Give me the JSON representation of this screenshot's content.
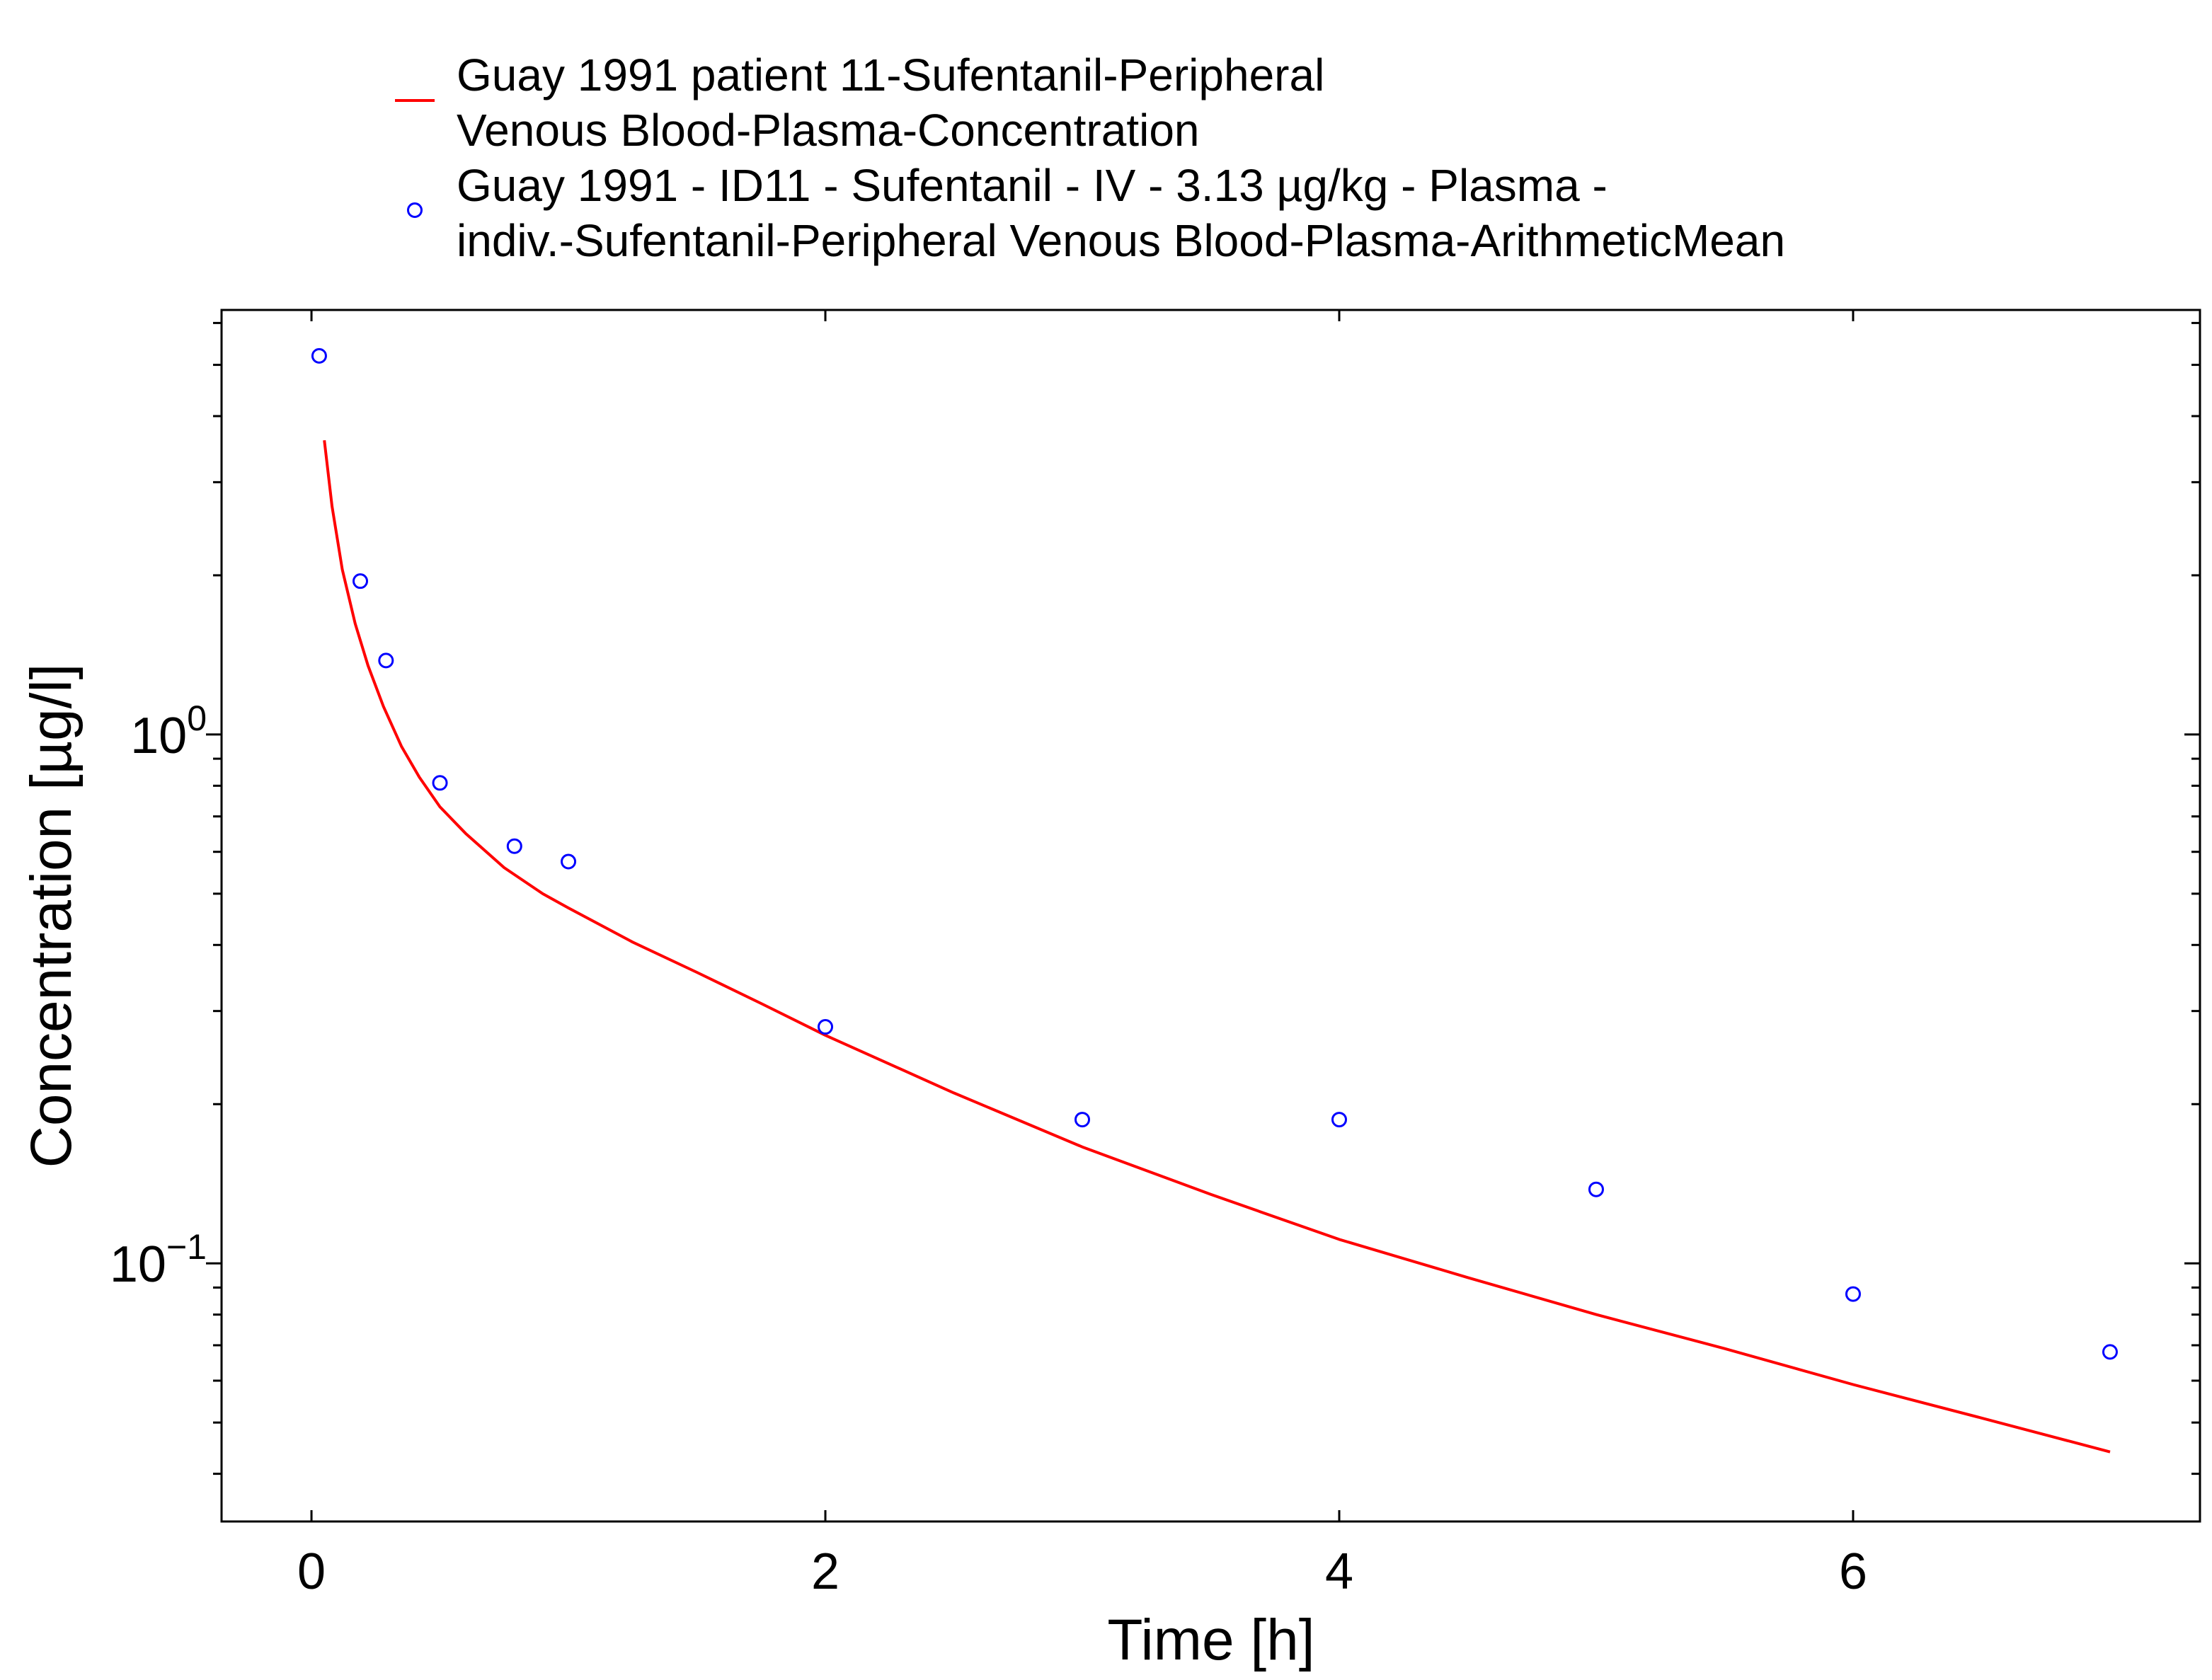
{
  "chart_data": {
    "type": "scatter",
    "xlabel": "Time [h]",
    "ylabel": "Concentration [µg/l]",
    "x_scale": "linear",
    "y_scale": "log",
    "xlim": [
      -0.35,
      7.35
    ],
    "ylim": [
      0.0325,
      6.35
    ],
    "x_ticks": [
      0,
      2,
      4,
      6
    ],
    "y_ticks": [
      {
        "value": 1,
        "base": "10",
        "exponent": "0"
      },
      {
        "value": 0.1,
        "base": "10",
        "exponent": "−1"
      }
    ],
    "legend_position": "top",
    "series": [
      {
        "name": "Guay 1991 patient 11-Sufentanil-Peripheral Venous Blood-Plasma-Concentration",
        "name_lines": [
          "Guay 1991 patient 11-Sufentanil-Peripheral",
          "Venous Blood-Plasma-Concentration"
        ],
        "type": "line",
        "color": "#ff0000",
        "x": [
          0.05,
          0.08,
          0.12,
          0.17,
          0.22,
          0.28,
          0.35,
          0.42,
          0.5,
          0.6,
          0.75,
          0.9,
          1.0,
          1.25,
          1.5,
          1.75,
          2.0,
          2.5,
          3.0,
          3.5,
          4.0,
          4.5,
          5.0,
          5.5,
          6.0,
          6.5,
          7.0
        ],
        "y": [
          3.6,
          2.7,
          2.05,
          1.62,
          1.35,
          1.13,
          0.95,
          0.83,
          0.73,
          0.65,
          0.56,
          0.5,
          0.47,
          0.405,
          0.355,
          0.31,
          0.27,
          0.21,
          0.166,
          0.135,
          0.111,
          0.094,
          0.08,
          0.069,
          0.059,
          0.051,
          0.044
        ]
      },
      {
        "name": "Guay 1991 - ID11 - Sufentanil - IV - 3.13 µg/kg - Plasma - indiv.-Sufentanil-Peripheral Venous Blood-Plasma-ArithmeticMean",
        "name_lines": [
          "Guay 1991 - ID11 - Sufentanil - IV - 3.13 µg/kg - Plasma -",
          "indiv.-Sufentanil-Peripheral Venous Blood-Plasma-ArithmeticMean"
        ],
        "type": "scatter",
        "marker": "open-circle",
        "color": "#0000ff",
        "x": [
          0.03,
          0.19,
          0.29,
          0.5,
          0.79,
          1.0,
          2.0,
          3.0,
          4.0,
          5.0,
          6.0,
          7.0
        ],
        "y": [
          5.2,
          1.95,
          1.38,
          0.81,
          0.615,
          0.575,
          0.28,
          0.187,
          0.187,
          0.138,
          0.0875,
          0.068
        ]
      }
    ]
  }
}
